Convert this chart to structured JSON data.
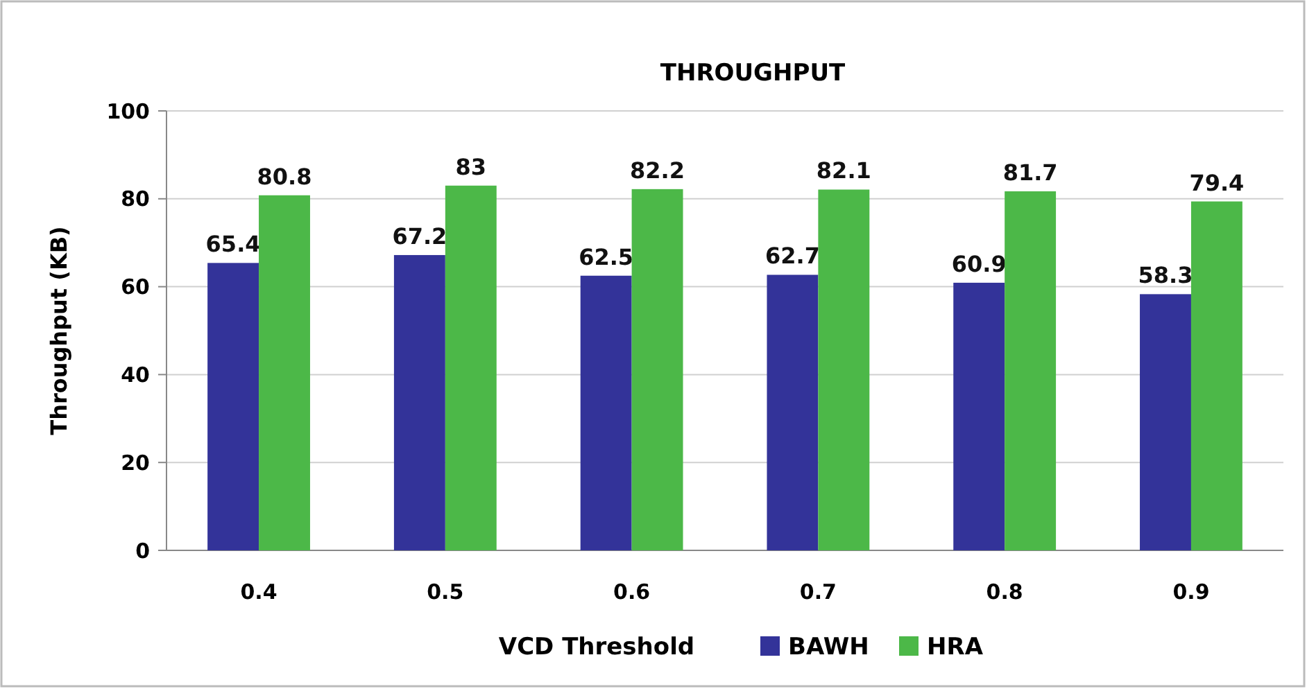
{
  "chart_data": {
    "type": "bar",
    "title": "THROUGHPUT",
    "xlabel": "VCD Threshold",
    "ylabel": "Throughput (KB)",
    "categories": [
      "0.4",
      "0.5",
      "0.6",
      "0.7",
      "0.8",
      "0.9"
    ],
    "series": [
      {
        "name": "BAWH",
        "color": "#333399",
        "values": [
          65.4,
          67.2,
          62.5,
          62.7,
          60.9,
          58.3
        ]
      },
      {
        "name": "HRA",
        "color": "#4cb848",
        "values": [
          80.8,
          83,
          82.2,
          82.1,
          81.7,
          79.4
        ]
      }
    ],
    "ylim": [
      0,
      100
    ],
    "yticks": [
      0,
      20,
      40,
      60,
      80,
      100
    ],
    "grid": "y",
    "legend": "bottom",
    "data_labels": true
  }
}
